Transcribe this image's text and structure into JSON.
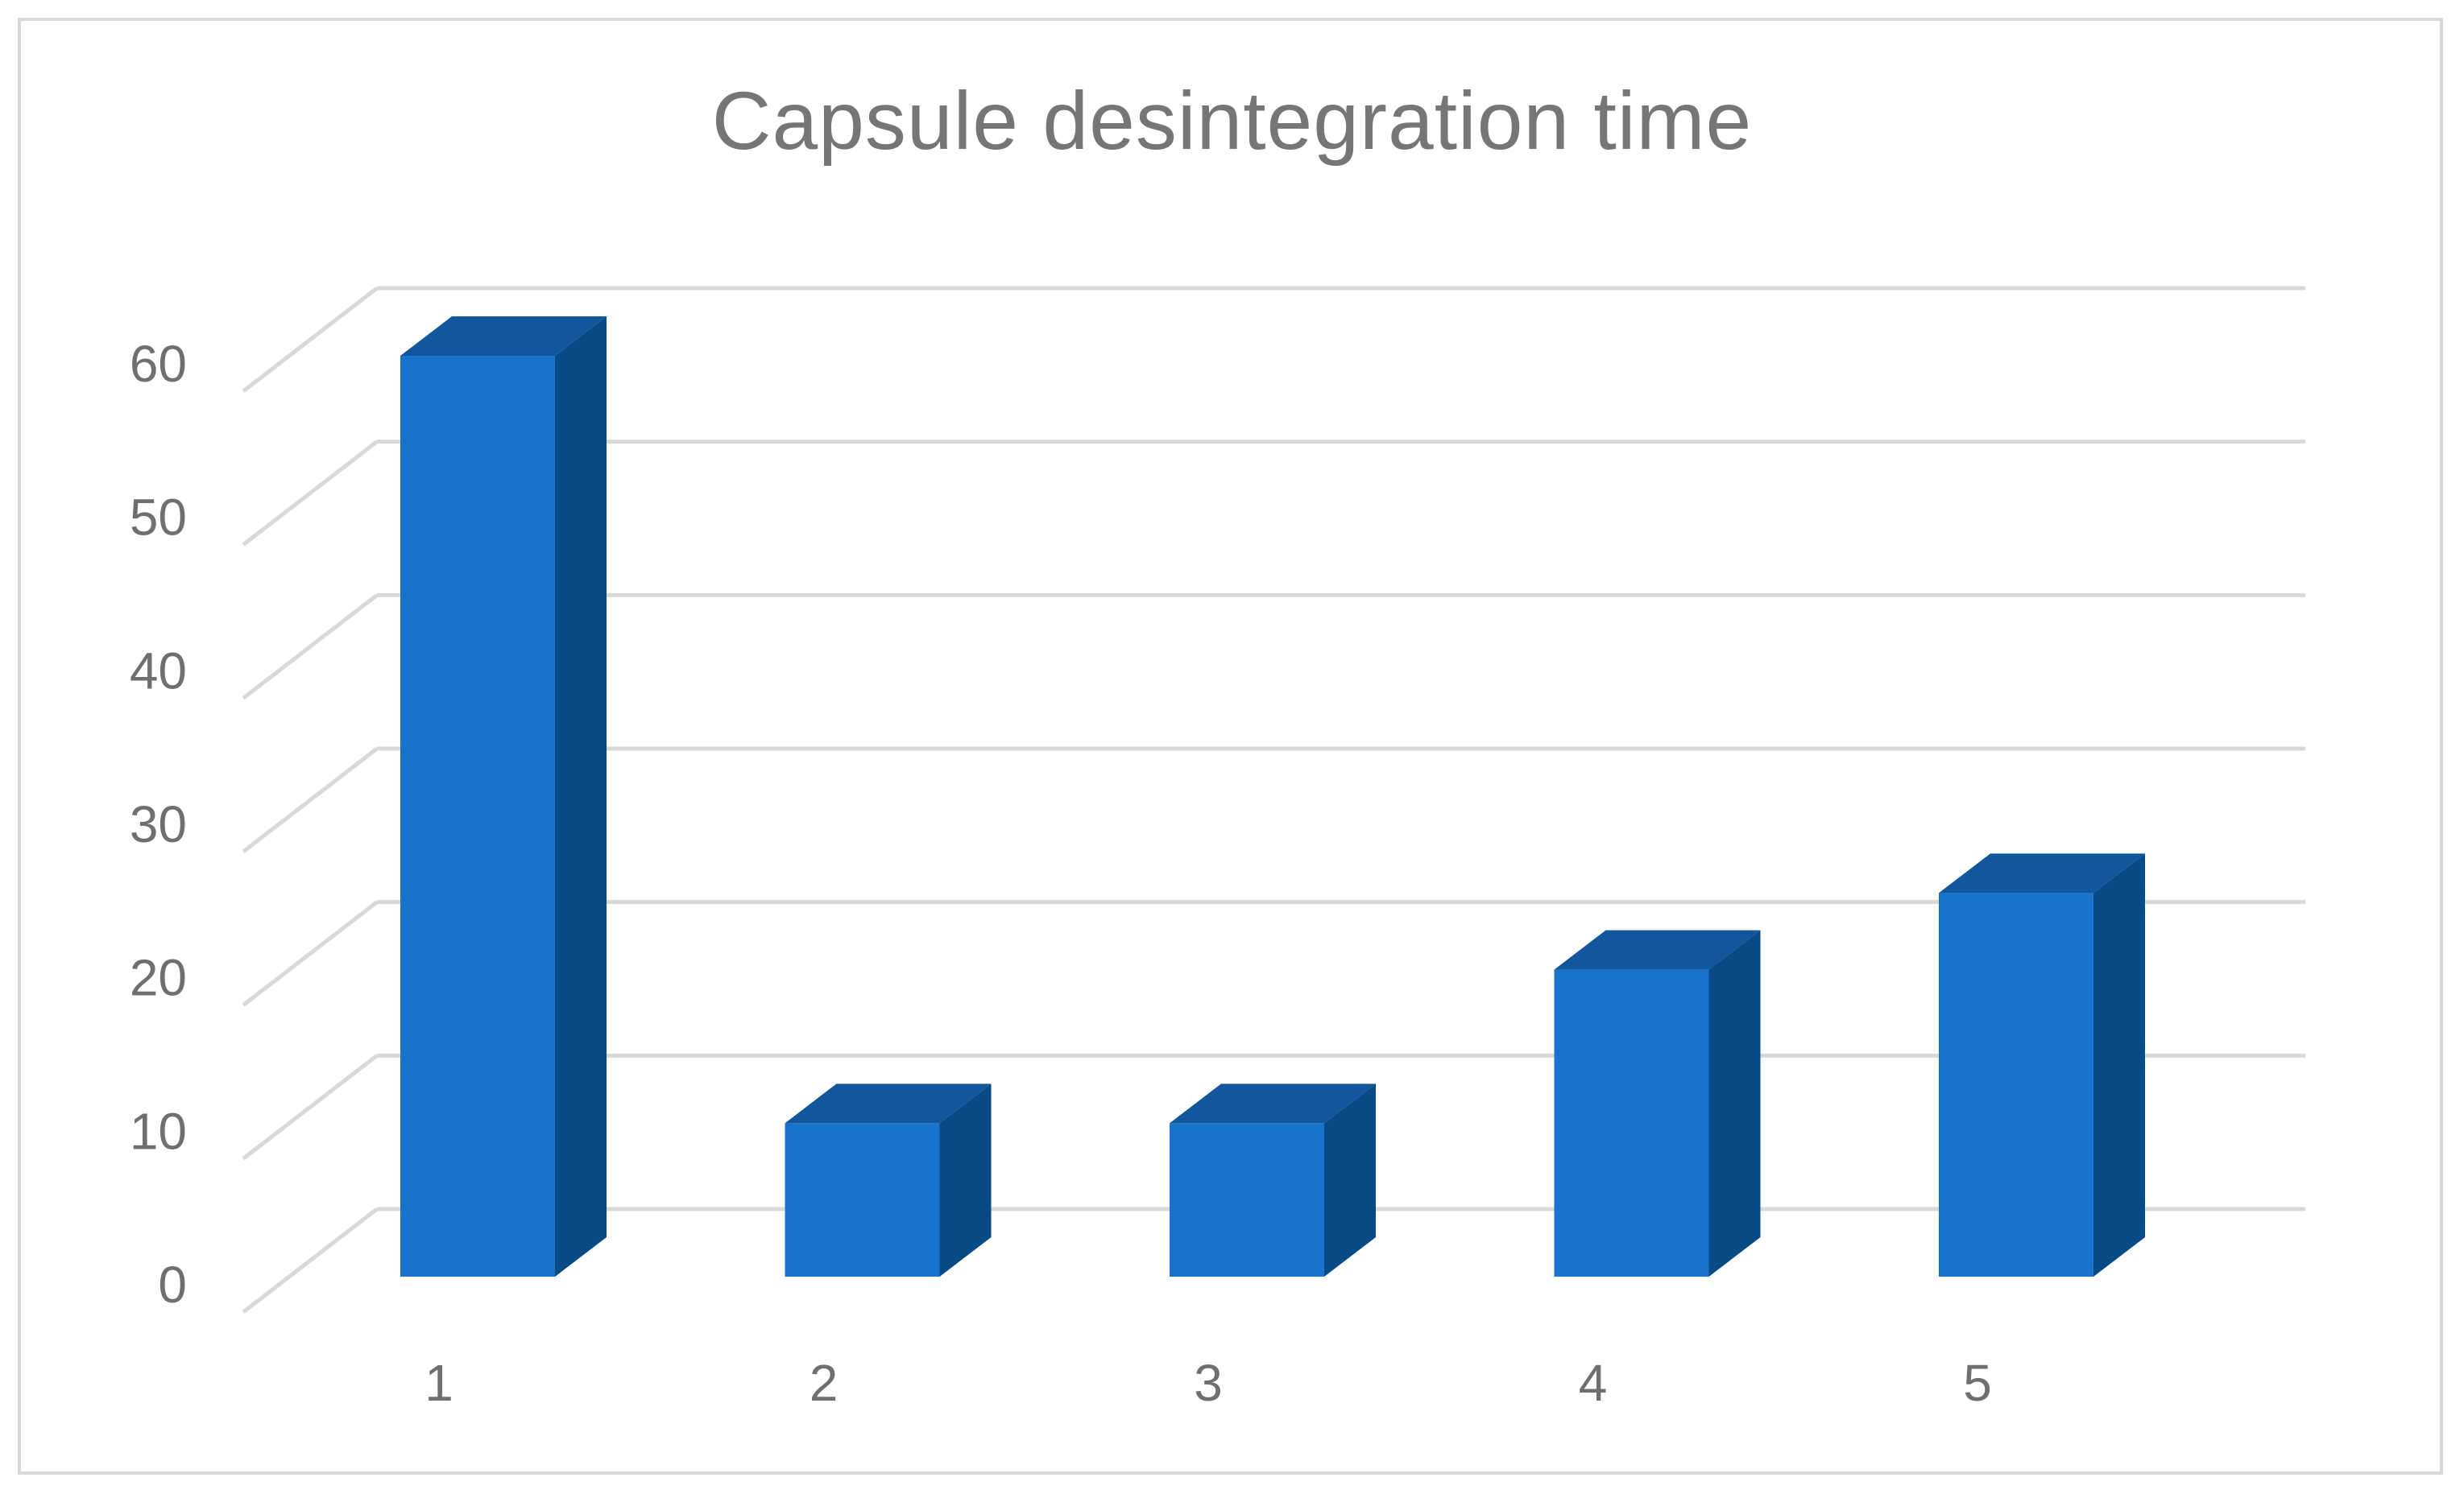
{
  "chart_data": {
    "type": "bar",
    "title": "Capsule desintegration time",
    "categories": [
      "1",
      "2",
      "3",
      "4",
      "5"
    ],
    "values": [
      60,
      10,
      10,
      20,
      25
    ],
    "xlabel": "",
    "ylabel": "",
    "ylim": [
      0,
      60
    ],
    "yticks": [
      "0",
      "10",
      "20",
      "30",
      "40",
      "50",
      "60"
    ],
    "grid": true,
    "legend": "none",
    "style": "3d-column",
    "colors": {
      "bar_front": "#1873CC",
      "bar_top": "#12579E",
      "bar_side": "#084A86",
      "grid": "#D9D9D9",
      "text": "#767676"
    }
  }
}
